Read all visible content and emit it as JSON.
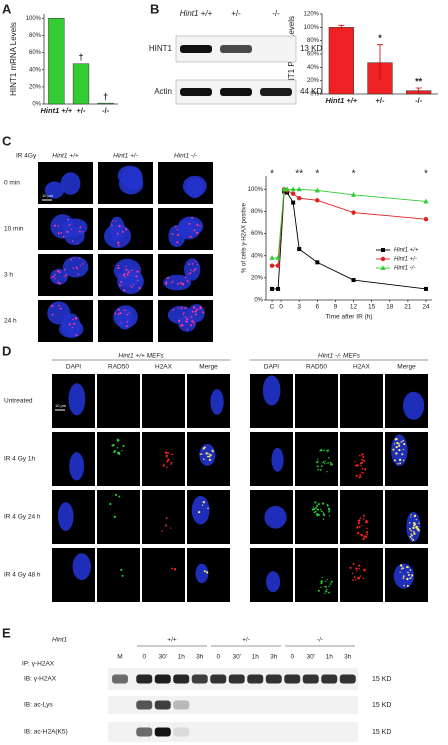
{
  "panel_labels": [
    "A",
    "B",
    "C",
    "D",
    "E"
  ],
  "chart_data": [
    {
      "type": "bar",
      "y_label": "HINT1 mRNA Levels",
      "categories": [
        "Hint1 +/+",
        "+/-",
        "-/-"
      ],
      "values": [
        100,
        47,
        1
      ],
      "color": "#33cc33",
      "ylim": [
        0,
        105
      ],
      "yticks": [
        {
          "value": 0,
          "label": "0%"
        },
        {
          "value": 20,
          "label": "20%"
        },
        {
          "value": 40,
          "label": "40%"
        },
        {
          "value": 60,
          "label": "60%"
        },
        {
          "value": 80,
          "label": "80%"
        },
        {
          "value": 100,
          "label": "100%"
        }
      ],
      "bar_annotations": [
        null,
        "†",
        "†"
      ]
    },
    {
      "type": "bar",
      "y_label": "HINT1 Protein Levels",
      "categories": [
        "Hint1 +/+",
        "+/-",
        "-/-"
      ],
      "values": [
        100,
        47,
        5
      ],
      "errors": [
        3,
        27,
        4
      ],
      "color": "#ee2222",
      "ylim": [
        0,
        120
      ],
      "yticks": [
        {
          "value": 0,
          "label": "0%"
        },
        {
          "value": 20,
          "label": "20%"
        },
        {
          "value": 40,
          "label": "40%"
        },
        {
          "value": 60,
          "label": "60%"
        },
        {
          "value": 80,
          "label": "80%"
        },
        {
          "value": 100,
          "label": "100%"
        },
        {
          "value": 120,
          "label": "120%"
        }
      ],
      "bar_annotations": [
        null,
        "*",
        "**"
      ]
    },
    {
      "type": "line",
      "y_label": "% of cells γ-H2AX positive",
      "x_label": "Time after IR (h)",
      "x": [
        -1.5,
        -0.5,
        0.5,
        1,
        2,
        3,
        6,
        12,
        24
      ],
      "series": [
        {
          "name": "Hint1 +/+",
          "color": "#000000",
          "marker": "square",
          "values": [
            10,
            10,
            98,
            97,
            88,
            46,
            34,
            18,
            10
          ]
        },
        {
          "name": "Hint1 +/-",
          "color": "#e02020",
          "marker": "circle",
          "values": [
            31,
            31,
            100,
            99,
            96,
            92,
            90,
            79,
            73
          ]
        },
        {
          "name": "Hint1 -/-",
          "color": "#33cc33",
          "marker": "triangle",
          "values": [
            38,
            38,
            100,
            100,
            100,
            100,
            99,
            95,
            89
          ]
        }
      ],
      "xlim": [
        -2.5,
        25
      ],
      "xticks": [
        {
          "value": -1.5,
          "label": "C"
        },
        0,
        3,
        6,
        9,
        12,
        15,
        18,
        21,
        24
      ],
      "ylim": [
        0,
        112
      ],
      "yticks": [
        {
          "value": 0,
          "label": "0%"
        },
        {
          "value": 20,
          "label": "20%"
        },
        {
          "value": 40,
          "label": "40%"
        },
        {
          "value": 60,
          "label": "60%"
        },
        {
          "value": 80,
          "label": "80%"
        },
        {
          "value": 100,
          "label": "100%"
        }
      ],
      "legend": "lower right",
      "annotations": [
        {
          "text": "*",
          "x": -1.5
        },
        {
          "text": "**",
          "x": 3
        },
        {
          "text": "*",
          "x": 6
        },
        {
          "text": "*",
          "x": 12
        },
        {
          "text": "*",
          "x": 24
        }
      ]
    }
  ],
  "blot_b": {
    "lanes": [
      "Hint1 +/+",
      "+/-",
      "-/-"
    ],
    "rows": [
      {
        "label": "HINT1",
        "size": "13 KD"
      },
      {
        "label": "Actin",
        "size": "44 KD"
      }
    ]
  },
  "micro_c": {
    "treatment": "IR 4Gy",
    "scale": "10 μm",
    "columns": [
      "Hint1 +/+",
      "Hint1 +/-",
      "Hint1 -/-"
    ],
    "rows": [
      "0 min",
      "10 min",
      "3 h",
      "24 h"
    ]
  },
  "micro_d": {
    "groups": [
      "Hint1 +/+ MEFs",
      "Hint1 -/- MEFs"
    ],
    "columns": [
      "DAPI",
      "RAD50",
      "H2AX",
      "Merge"
    ],
    "rows": [
      "Untreated",
      "IR 4 Gy 1h",
      "IR 4 Gy 24 h",
      "IR 4 Gy 48 h"
    ],
    "scale": "10 μm"
  },
  "blot_e": {
    "gene": "Hint1",
    "ip": "IP: γ-H2AX",
    "marker": "M",
    "genotypes": [
      "+/+",
      "+/-",
      "-/-"
    ],
    "times": [
      "0",
      "30'",
      "1h",
      "3h"
    ],
    "rows": [
      {
        "label": "IB: γ-H2AX",
        "size": "15 KD"
      },
      {
        "label": "IB: ac-Lys",
        "size": "15 KD"
      },
      {
        "label": "IB: ac-H2A(K5)",
        "size": "15 KD"
      }
    ]
  }
}
